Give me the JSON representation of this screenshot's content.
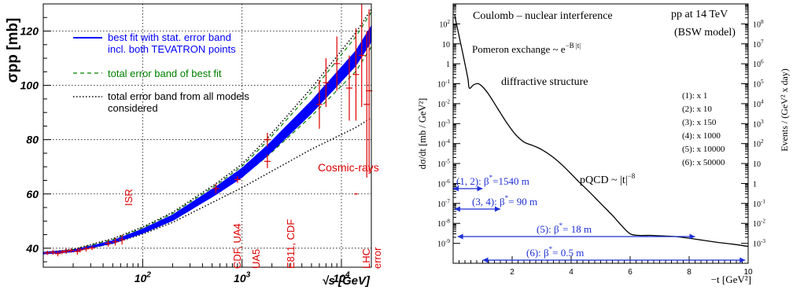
{
  "chart_data": [
    {
      "type": "scatter",
      "title": "",
      "xlabel": "√s [GeV]",
      "ylabel": "σpp [mb]",
      "xscale": "log",
      "xlim": [
        10,
        20000
      ],
      "ylim": [
        33,
        130
      ],
      "grid": true,
      "x_tick_labels": [
        "10^2",
        "10^3",
        "10^4"
      ],
      "y_tick_labels": [
        "40",
        "60",
        "80",
        "100",
        "120"
      ],
      "legend_position": "top-left",
      "legend": [
        {
          "label": "best fit with stat. error band",
          "label2": "incl. both TEVATRON points",
          "color": "#0000ff",
          "style": "solid"
        },
        {
          "label": "total error band of best fit",
          "label2": "",
          "color": "#008000",
          "style": "dashed"
        },
        {
          "label": "total error band from all models",
          "label2": "considered",
          "color": "#000000",
          "style": "dotted"
        }
      ],
      "annotations": {
        "isr": "ISR",
        "cdf_ua4": "CDF, UA4",
        "ua5": "UA5",
        "e811": "E811, CDF",
        "lhc": "LHC",
        "lhc_error": "error",
        "cosmic": "Cosmic-rays"
      },
      "series": [
        {
          "name": "best fit with stat. error band",
          "x": [
            10,
            20,
            50,
            100,
            200,
            546,
            1000,
            1800,
            5000,
            14000,
            20000
          ],
          "y": [
            38.2,
            39.0,
            42.3,
            46.3,
            51.2,
            61.2,
            67.8,
            76.0,
            92.0,
            110.0,
            119.0
          ]
        },
        {
          "name": "total error band of best fit (upper)",
          "x": [
            10,
            20,
            50,
            100,
            200,
            546,
            1000,
            1800,
            5000,
            14000,
            20000
          ],
          "y": [
            38.3,
            39.5,
            43.2,
            47.5,
            52.8,
            63.2,
            70.2,
            79.5,
            97.5,
            118.0,
            127.0
          ]
        },
        {
          "name": "total error band from all models (upper)",
          "x": [
            10,
            20,
            50,
            100,
            200,
            546,
            1000,
            1800,
            5000,
            14000,
            20000
          ],
          "y": [
            38.4,
            39.6,
            43.5,
            47.8,
            53.2,
            63.8,
            71.0,
            80.5,
            99.0,
            119.5,
            128.0
          ]
        },
        {
          "name": "total error band from all models (lower)",
          "x": [
            10,
            20,
            50,
            100,
            200,
            546,
            1000,
            1800,
            5000,
            14000,
            20000
          ],
          "y": [
            38.1,
            38.8,
            41.8,
            45.2,
            49.5,
            57.5,
            62.3,
            67.5,
            76.5,
            84.5,
            88.0
          ]
        }
      ],
      "data_points": [
        {
          "x": 11,
          "y": 38.3,
          "err": 0.8
        },
        {
          "x": 12.5,
          "y": 38.5,
          "err": 0.9
        },
        {
          "x": 14,
          "y": 38.0,
          "err": 1.0
        },
        {
          "x": 15.5,
          "y": 38.6,
          "err": 0.8
        },
        {
          "x": 17,
          "y": 38.9,
          "err": 1.0
        },
        {
          "x": 19,
          "y": 39.2,
          "err": 0.8
        },
        {
          "x": 22,
          "y": 38.8,
          "err": 1.2
        },
        {
          "x": 23.5,
          "y": 39.4,
          "err": 0.9
        },
        {
          "x": 27,
          "y": 39.8,
          "err": 1.0
        },
        {
          "x": 31,
          "y": 40.1,
          "err": 0.8
        },
        {
          "x": 45,
          "y": 41.8,
          "err": 1.2
        },
        {
          "x": 53,
          "y": 42.4,
          "err": 1.4
        },
        {
          "x": 62,
          "y": 43.1,
          "err": 1.8
        },
        {
          "x": 546,
          "y": 62.0,
          "err": 1.8
        },
        {
          "x": 900,
          "y": 65.3,
          "err": 1.2
        },
        {
          "x": 1800,
          "y": 72.0,
          "err": 2.5
        },
        {
          "x": 1800,
          "y": 80.0,
          "err": 2.5
        },
        {
          "x": 6000,
          "y": 93.0,
          "err": 9.0
        },
        {
          "x": 7000,
          "y": 101.0,
          "err": 9.0
        },
        {
          "x": 9000,
          "y": 108.0,
          "err": 10.0
        },
        {
          "x": 12000,
          "y": 99.0,
          "err": 12.0
        },
        {
          "x": 14000,
          "y": 104.0,
          "err": 17.0
        },
        {
          "x": 16000,
          "y": 111.0,
          "err": 19.0
        },
        {
          "x": 18000,
          "y": 93.0,
          "err": 27.0
        },
        {
          "x": 19000,
          "y": 98.0,
          "err": 30.0
        }
      ],
      "lhc_error_marker": {
        "x": 14000,
        "y": 60.0,
        "err": 1.0
      }
    },
    {
      "type": "line",
      "title": "",
      "xlabel": "−t [GeV²]",
      "ylabel": "dσ/dt [mb / GeV²]",
      "ylabel_right": "Events / (GeV² x day)",
      "yscale": "log",
      "xlim": [
        0,
        10
      ],
      "ylim": [
        1e-10,
        1000
      ],
      "x_tick_labels": [
        "2",
        "4",
        "6",
        "8",
        "10"
      ],
      "y_tick_labels": [
        "10^-9",
        "10^-8",
        "10^-7",
        "10^-6",
        "10^-5",
        "10^-4",
        "10^-3",
        "10^-2",
        "10^-1",
        "1",
        "10",
        "10^2"
      ],
      "y2_tick_labels": [
        "10^-3",
        "10^-2",
        "10^-1",
        "1",
        "10",
        "10^2",
        "10^3",
        "10^4",
        "10^5",
        "10^6",
        "10^7",
        "10^8"
      ],
      "series": [
        {
          "name": "",
          "x": [
            0.05,
            0.1,
            0.2,
            0.3,
            0.4,
            0.5,
            0.55,
            0.7,
            0.85,
            1.0,
            1.2,
            1.5,
            1.8,
            2.1,
            2.4,
            2.7,
            3.0,
            3.4,
            3.8,
            4.2,
            4.6,
            5.0,
            5.4,
            5.7,
            6.0,
            6.3,
            6.7,
            7.0,
            7.5,
            8.0,
            8.5,
            9.0,
            9.5,
            10.0
          ],
          "y": [
            300,
            120,
            25,
            5,
            1.0,
            0.18,
            0.06,
            0.09,
            0.1,
            0.07,
            0.03,
            0.006,
            0.0012,
            0.0003,
            0.00012,
            8e-05,
            5e-05,
            2e-05,
            6e-06,
            1.5e-06,
            4e-07,
            1e-07,
            2.5e-08,
            8e-09,
            3e-09,
            2.5e-09,
            2.5e-09,
            2.4e-09,
            2.2e-09,
            1.8e-09,
            1.4e-09,
            1.1e-09,
            9e-10,
            7e-10
          ]
        }
      ],
      "annotations": {
        "coulomb": "Coulomb – nuclear interference",
        "pomeron": "Pomeron exchange ~ e",
        "pomeron_exp": "−B |t|",
        "diffractive": "diffractive structure",
        "pqcd": "pQCD ~ |t|",
        "pqcd_exp": "−8",
        "header1": "pp at 14 TeV",
        "header2": "(BSW model)"
      },
      "scale_factors": [
        "(1): x 1",
        "(2): x 10",
        "(3): x 150",
        "(4): x 1000",
        "(5): x 10000",
        "(6): x 50000"
      ],
      "ranges": [
        {
          "label": "(1, 2):  β",
          "value": "=1540 m",
          "t_min": 0.0,
          "t_max": 1.0
        },
        {
          "label": "(3, 4):  β",
          "value": "= 90 m",
          "t_min": 0.05,
          "t_max": 1.6
        },
        {
          "label": "(5):  β",
          "value": "= 18 m",
          "t_min": 0.15,
          "t_max": 8.2
        },
        {
          "label": "(6):  β",
          "value": "= 0.5 m",
          "t_min": 1.0,
          "t_max": 9.9
        }
      ]
    }
  ]
}
